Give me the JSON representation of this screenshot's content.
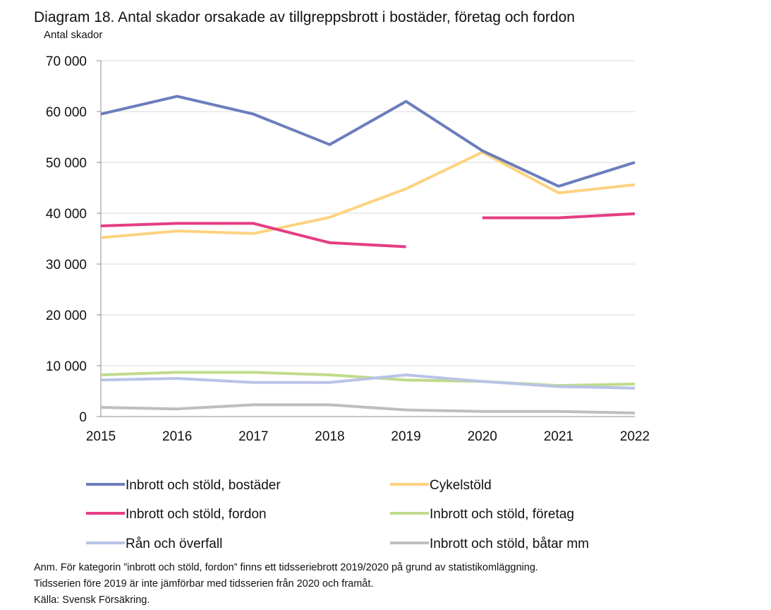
{
  "chart_data": {
    "type": "line",
    "title": "Diagram 18. Antal skador orsakade av tillgreppsbrott i bostäder, företag och fordon",
    "ylabel": "Antal skador",
    "xlabel": "",
    "ylim": [
      0,
      70000
    ],
    "grid": true,
    "legend_position": "bottom",
    "x": [
      "2015",
      "2016",
      "2017",
      "2018",
      "2019",
      "2020",
      "2021",
      "2022"
    ],
    "y_ticks": [
      {
        "value": 0,
        "label": "0"
      },
      {
        "value": 10000,
        "label": "10 000"
      },
      {
        "value": 20000,
        "label": "20 000"
      },
      {
        "value": 30000,
        "label": "30 000"
      },
      {
        "value": 40000,
        "label": "40 000"
      },
      {
        "value": 50000,
        "label": "50 000"
      },
      {
        "value": 60000,
        "label": "60 000"
      },
      {
        "value": 70000,
        "label": "70 000"
      }
    ],
    "series": [
      {
        "name": "Inbrott och stöld, bostäder",
        "color": "#6b7dbc",
        "values": [
          59500,
          63000,
          59500,
          53500,
          62000,
          52300,
          45300,
          50000
        ]
      },
      {
        "name": "Cykelstöld",
        "color": "#fdd380",
        "values": [
          35200,
          36500,
          36000,
          39200,
          44800,
          52000,
          44000,
          45600
        ]
      },
      {
        "name": "Inbrott och stöld, fordon",
        "color": "#e53d84",
        "values": [
          37500,
          38000,
          38000,
          34200,
          33400,
          null,
          null,
          null
        ]
      },
      {
        "name": "Inbrott och stöld, företag",
        "color": "#bfdb8c",
        "values": [
          8200,
          8700,
          8700,
          8200,
          7200,
          6900,
          6100,
          6400
        ]
      },
      {
        "name": "Rån och överfall",
        "color": "#b9c3e6",
        "values": [
          7200,
          7500,
          6700,
          6700,
          8200,
          6900,
          5900,
          5600
        ]
      },
      {
        "name": "Inbrott och stöld, båtar mm",
        "color": "#bebebe",
        "values": [
          1800,
          1500,
          2300,
          2300,
          1300,
          1000,
          1000,
          700
        ]
      },
      {
        "name": "Inbrott och stöld, fordon",
        "color": "#e53d84",
        "in_legend": false,
        "values": [
          null,
          null,
          null,
          null,
          null,
          39100,
          39100,
          39900
        ]
      }
    ],
    "notes": [
      "Anm. För kategorin ”inbrott och stöld, fordon” finns ett tidsseriebrott 2019/2020 på grund av statistikomläggning.",
      "Tidsserien före 2019 är inte jämförbar med tidsserien från 2020 och framåt.",
      "Källa: Svensk Försäkring."
    ]
  }
}
